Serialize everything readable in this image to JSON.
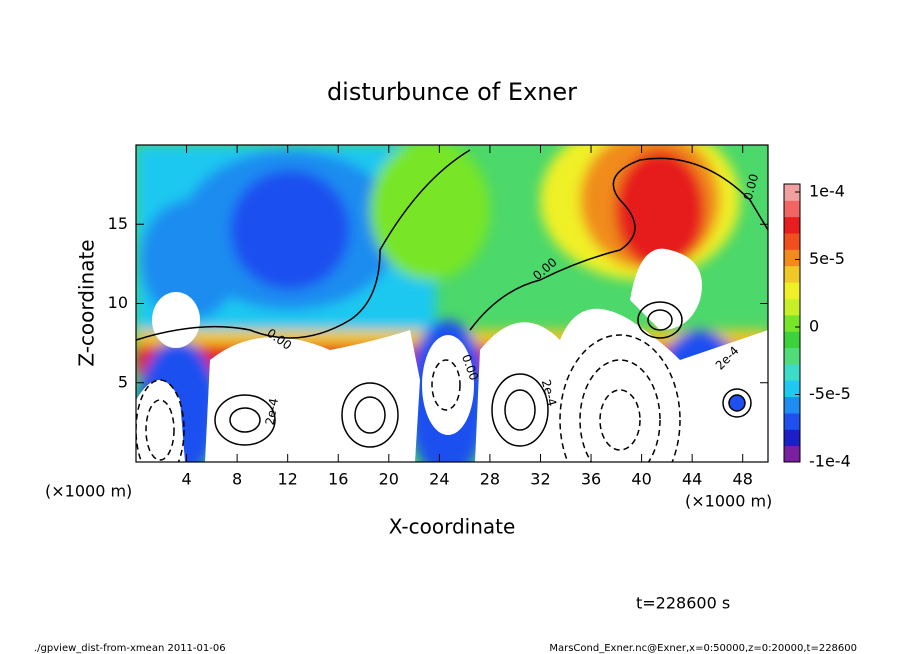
{
  "chart_data": {
    "type": "heatmap",
    "title": "disturbunce of Exner",
    "xlabel": "X-coordinate",
    "ylabel": "Z-coordinate",
    "x_unit": "(×1000 m)",
    "y_unit": "(×1000 m)",
    "xlim": [
      0,
      50
    ],
    "ylim": [
      0,
      20
    ],
    "xticks": [
      4,
      8,
      12,
      16,
      20,
      24,
      28,
      32,
      36,
      40,
      44,
      48
    ],
    "yticks": [
      5,
      10,
      15
    ],
    "colorbar": {
      "lim": [
        -0.0001,
        0.0001
      ],
      "ticks": [
        {
          "value": 0.0001,
          "label": "1e-4"
        },
        {
          "value": 5e-05,
          "label": "5e-5"
        },
        0,
        {
          "value": -5e-05,
          "label": "-5e-5"
        },
        {
          "value": -0.0001,
          "label": "-1e-4"
        }
      ],
      "colors": [
        "#7a1fa0",
        "#1e1ec8",
        "#1e50f0",
        "#1e8cf0",
        "#1ec8f0",
        "#3cdcc8",
        "#50dc78",
        "#3cd23c",
        "#78e628",
        "#c8f028",
        "#f0f028",
        "#f0c828",
        "#f08c1e",
        "#f0501e",
        "#e61e1e",
        "#f06464",
        "#f0a0a0"
      ]
    },
    "annotations": [
      "0.00",
      "0.00",
      "0.00",
      "0.00",
      "2e-4",
      "2e-4",
      "2e-4"
    ],
    "time_label": "t=228600 s",
    "footer_left": "./gpview_dist-from-xmean  2011-01-06",
    "footer_right": "MarsCond_Exner.nc@Exner,x=0:50000,z=0:20000,t=228600"
  }
}
